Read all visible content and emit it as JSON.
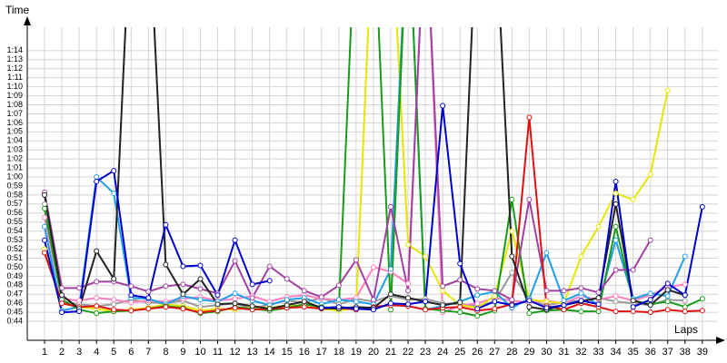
{
  "chart_data": {
    "type": "line",
    "y_label": "Time",
    "x_label": "Laps",
    "grid": true,
    "xlim": [
      0,
      39.9
    ],
    "ylim": [
      41.9,
      76.6
    ],
    "x": [
      1,
      2,
      3,
      4,
      5,
      6,
      7,
      8,
      9,
      10,
      11,
      12,
      13,
      14,
      15,
      16,
      17,
      18,
      19,
      20,
      21,
      22,
      23,
      24,
      25,
      26,
      27,
      28,
      29,
      30,
      31,
      32,
      33,
      34,
      35,
      36,
      37,
      38,
      39
    ],
    "xticks": [
      1,
      2,
      3,
      4,
      5,
      6,
      7,
      8,
      9,
      10,
      11,
      12,
      13,
      14,
      15,
      16,
      17,
      18,
      19,
      20,
      21,
      22,
      23,
      24,
      25,
      26,
      27,
      28,
      29,
      30,
      31,
      32,
      33,
      34,
      35,
      36,
      37,
      38,
      39
    ],
    "yticks": [
      {
        "value": 44,
        "label": "0:44"
      },
      {
        "value": 45,
        "label": "0:45"
      },
      {
        "value": 46,
        "label": "0:46"
      },
      {
        "value": 47,
        "label": "0:47"
      },
      {
        "value": 48,
        "label": "0:48"
      },
      {
        "value": 49,
        "label": "0:49"
      },
      {
        "value": 50,
        "label": "0:50"
      },
      {
        "value": 51,
        "label": "0:51"
      },
      {
        "value": 52,
        "label": "0:52"
      },
      {
        "value": 53,
        "label": "0:53"
      },
      {
        "value": 54,
        "label": "0:54"
      },
      {
        "value": 55,
        "label": "0:55"
      },
      {
        "value": 56,
        "label": "0:56"
      },
      {
        "value": 57,
        "label": "0:57"
      },
      {
        "value": 58,
        "label": "0:58"
      },
      {
        "value": 59,
        "label": "0:59"
      },
      {
        "value": 60,
        "label": "1:00"
      },
      {
        "value": 61,
        "label": "1:01"
      },
      {
        "value": 62,
        "label": "1:02"
      },
      {
        "value": 63,
        "label": "1:03"
      },
      {
        "value": 64,
        "label": "1:04"
      },
      {
        "value": 65,
        "label": "1:05"
      },
      {
        "value": 66,
        "label": "1:06"
      },
      {
        "value": 67,
        "label": "1:07"
      },
      {
        "value": 68,
        "label": "1:08"
      },
      {
        "value": 69,
        "label": "1:09"
      },
      {
        "value": 70,
        "label": "1:10"
      },
      {
        "value": 71,
        "label": "1:11"
      },
      {
        "value": 72,
        "label": "1:12"
      },
      {
        "value": 73,
        "label": "1:13"
      },
      {
        "value": 74,
        "label": "1:14"
      }
    ],
    "series": [
      {
        "color": "#999999",
        "values": [
          57,
          46.2,
          45.9,
          45.7,
          45.9,
          46.4,
          46.1,
          46,
          46.3,
          45.6,
          45.8,
          46,
          45.4,
          45.9,
          46.3,
          46.1,
          46.6,
          45.9,
          46.5,
          46.2,
          46.8,
          46.4,
          46.5,
          46,
          45.9,
          45.7,
          46.2,
          49.4,
          46.3,
          45.8,
          46.1,
          46.3,
          46.6,
          46.2,
          46,
          45.8,
          46.4,
          46.3,
          null
        ]
      },
      {
        "color": "#ff80c0",
        "values": [
          55.5,
          46.5,
          46.3,
          46.6,
          46.4,
          46.1,
          46.3,
          46.2,
          46.5,
          46.7,
          46.3,
          46.5,
          46.8,
          46.2,
          46.7,
          46.9,
          46.5,
          46.4,
          46.6,
          50,
          49.5,
          48.2,
          90,
          45,
          45.7,
          46,
          46.6,
          46.3,
          46.1,
          46.3,
          46,
          46.8,
          46.4,
          46.8,
          46.3,
          46.9,
          47.8,
          48.1,
          null
        ]
      },
      {
        "color": "#e6e600",
        "values": [
          52,
          46,
          45.6,
          45.4,
          45.1,
          45.3,
          45.5,
          45.9,
          45.7,
          45.2,
          45.4,
          45.3,
          45.6,
          45.5,
          45.8,
          45.7,
          45.4,
          45.2,
          45.5,
          90,
          90,
          52.5,
          51.2,
          47.4,
          45.8,
          45.5,
          46.8,
          54,
          46.4,
          46.2,
          46,
          51.2,
          54.5,
          58.2,
          57.5,
          60.3,
          69.6,
          null,
          null
        ]
      },
      {
        "color": "#1e9fe8",
        "values": [
          54.5,
          45.2,
          45.6,
          60,
          58.2,
          46.6,
          46.5,
          45.9,
          46.8,
          46.4,
          46.2,
          47.1,
          46.3,
          45.8,
          46.4,
          46.6,
          45.9,
          46.4,
          46.2,
          45.9,
          49.8,
          90,
          45.3,
          45.7,
          46.2,
          46.9,
          47.3,
          45.5,
          46.5,
          51.6,
          46.3,
          47.1,
          45.8,
          53,
          46.5,
          47.1,
          46.8,
          51.2,
          null
        ]
      },
      {
        "color": "#1a9a1a",
        "values": [
          56.5,
          46.4,
          45.3,
          44.9,
          45.1,
          45.2,
          45.4,
          45.7,
          45.5,
          44.9,
          45.1,
          45.6,
          45.4,
          45.2,
          45.5,
          45.9,
          45.6,
          45.4,
          90,
          90,
          45.3,
          90,
          45.4,
          45.2,
          45,
          44.6,
          45.2,
          57.5,
          44.9,
          45.2,
          45.3,
          45.1,
          45.1,
          54.5,
          46.3,
          45.9,
          46.2,
          45.6,
          46.5
        ]
      },
      {
        "color": "#a040a0",
        "values": [
          58.3,
          47.7,
          47.7,
          48.4,
          48.4,
          47.9,
          47.3,
          47.9,
          48.1,
          47.6,
          47.1,
          50.7,
          46.6,
          50.1,
          48.7,
          47.4,
          46.7,
          48.0,
          50.8,
          46.4,
          56.7,
          47.4,
          90,
          47.9,
          48.6,
          47.6,
          47.4,
          46.4,
          57.5,
          47.4,
          47.4,
          47.7,
          47.2,
          49.7,
          49.7,
          53,
          null,
          null,
          null
        ]
      },
      {
        "color": "#e01010",
        "values": [
          51.6,
          46,
          45.6,
          45.7,
          45.3,
          45.2,
          45.4,
          45.6,
          45.4,
          45,
          45.2,
          45.5,
          45.3,
          45.4,
          45.5,
          45.6,
          45.4,
          45.5,
          45.3,
          45.6,
          45.8,
          45.7,
          45.3,
          45.5,
          45.6,
          45.2,
          45.4,
          45.9,
          66.6,
          45.7,
          45.3,
          46,
          45.6,
          45.1,
          45.1,
          45,
          45.3,
          45.1,
          45.2
        ]
      },
      {
        "color": "#222222",
        "values": [
          58,
          46.9,
          45.4,
          51.8,
          48.7,
          90,
          90,
          50.3,
          47,
          48.7,
          45.9,
          46,
          45.7,
          45.4,
          45.8,
          46.2,
          45.5,
          45.4,
          45.6,
          45.5,
          47,
          46.6,
          46.2,
          45.8,
          46.1,
          90,
          90,
          51.2,
          45.6,
          45.3,
          45.8,
          46.2,
          46.6,
          57,
          46.3,
          45.8,
          47.5,
          46.9,
          null
        ]
      },
      {
        "color": "#0000cc",
        "values": [
          53,
          45,
          45.1,
          59.5,
          60.7,
          46.9,
          46.6,
          54.7,
          50.1,
          50.2,
          46.9,
          53,
          48.1,
          48.5,
          null,
          null,
          45.5,
          45.6,
          45.4,
          45.3,
          46,
          45.9,
          46.2,
          67.9,
          50.4,
          45.4,
          46.2,
          45.8,
          46.3,
          45.5,
          45.8,
          46.3,
          45.9,
          59.5,
          45.6,
          46.4,
          48.2,
          46.9,
          56.7
        ]
      }
    ]
  }
}
